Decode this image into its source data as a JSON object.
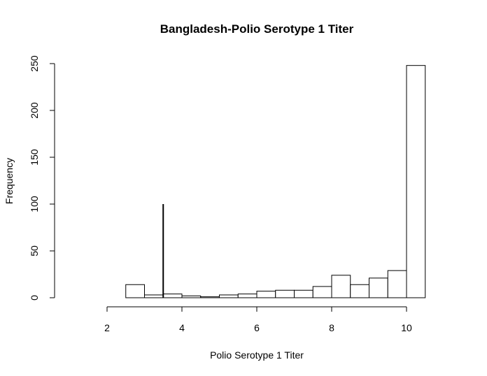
{
  "chart_data": {
    "type": "bar",
    "title": "Bangladesh-Polio Serotype 1 Titer",
    "xlabel": "Polio Serotype 1 Titer",
    "ylabel": "Frequency",
    "xlim": [
      0.75,
      10.9
    ],
    "ylim": [
      0,
      250
    ],
    "x_ticks": [
      2,
      4,
      6,
      8,
      10
    ],
    "y_ticks": [
      0,
      50,
      100,
      150,
      200,
      250
    ],
    "bin_width": 0.5,
    "bins": [
      {
        "start": 2.5,
        "end": 3.0,
        "count": 14
      },
      {
        "start": 3.0,
        "end": 3.5,
        "count": 3
      },
      {
        "start": 3.5,
        "end": 4.0,
        "count": 4
      },
      {
        "start": 4.0,
        "end": 4.5,
        "count": 2
      },
      {
        "start": 4.5,
        "end": 5.0,
        "count": 1
      },
      {
        "start": 5.0,
        "end": 5.5,
        "count": 3
      },
      {
        "start": 5.5,
        "end": 6.0,
        "count": 4
      },
      {
        "start": 6.0,
        "end": 6.5,
        "count": 7
      },
      {
        "start": 6.5,
        "end": 7.0,
        "count": 8
      },
      {
        "start": 7.0,
        "end": 7.5,
        "count": 8
      },
      {
        "start": 7.5,
        "end": 8.0,
        "count": 12
      },
      {
        "start": 8.0,
        "end": 8.5,
        "count": 24
      },
      {
        "start": 8.5,
        "end": 9.0,
        "count": 14
      },
      {
        "start": 9.0,
        "end": 9.5,
        "count": 21
      },
      {
        "start": 9.5,
        "end": 10.0,
        "count": 29
      },
      {
        "start": 10.0,
        "end": 10.5,
        "count": 248
      }
    ],
    "reference_line": {
      "x": 3.5,
      "y_from": 0,
      "y_to": 100
    },
    "grid": false,
    "legend": "none"
  }
}
